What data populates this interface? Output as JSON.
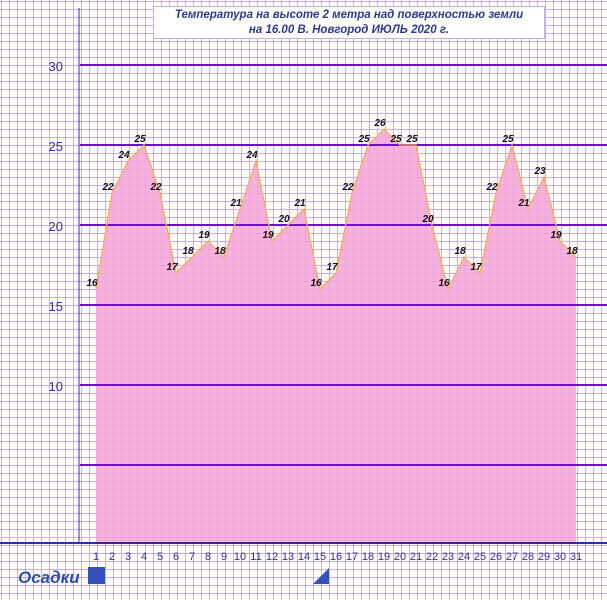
{
  "title_line1": "Температура  на  высоте  2  метра  над  поверхностью  земли",
  "title_line2": "на  16.00  В. Новгород  ИЮЛЬ  2020  г.",
  "footer": {
    "label": "Осадки"
  },
  "colors": {
    "area_fill": "#f4a3d6",
    "line": "#f0b050",
    "grid_minor": "#a56fd6",
    "grid_major": "#6f10c7",
    "axis": "#2e2ea0",
    "tick_label": "#2e2ea0",
    "data_label": "#111111"
  },
  "chart_data": {
    "type": "area",
    "title": "Температура  на  высоте  2  метра  над  поверхностью  земли  на  16.00  В. Новгород  ИЮЛЬ  2020  г.",
    "x": [
      1,
      2,
      3,
      4,
      5,
      6,
      7,
      8,
      9,
      10,
      11,
      12,
      13,
      14,
      15,
      16,
      17,
      18,
      19,
      20,
      21,
      22,
      23,
      24,
      25,
      26,
      27,
      28,
      29,
      30,
      31
    ],
    "values": [
      16,
      22,
      24,
      25,
      22,
      17,
      18,
      19,
      18,
      21,
      24,
      19,
      20,
      21,
      16,
      17,
      22,
      25,
      26,
      25,
      25,
      20,
      16,
      18,
      17,
      22,
      25,
      21,
      23,
      19,
      18
    ],
    "y_ticks": [
      10,
      15,
      20,
      25,
      30
    ],
    "ylim": [
      0,
      34
    ],
    "grid": true,
    "legend": "none"
  }
}
